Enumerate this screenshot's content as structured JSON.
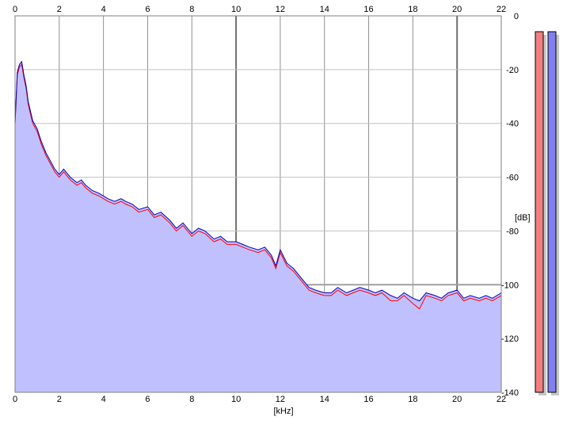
{
  "chart_data": {
    "type": "area",
    "x_unit_label": "[kHz]",
    "y_unit_label": "[dB]",
    "xlim": [
      0,
      22
    ],
    "ylim": [
      -140,
      0
    ],
    "x_ticks": [
      0,
      2,
      4,
      6,
      8,
      10,
      12,
      14,
      16,
      18,
      20,
      22
    ],
    "x_tick_labels": [
      "0",
      "2",
      "4",
      "6",
      "8",
      "10",
      "12",
      "14",
      "16",
      "18",
      "20",
      "22"
    ],
    "y_ticks": [
      0,
      -20,
      -40,
      -60,
      -80,
      -100,
      -120,
      -140
    ],
    "y_tick_labels": [
      "0",
      "-20",
      "-40",
      "-60",
      "-80",
      "-100",
      "-120",
      "-140"
    ],
    "grid": true,
    "series": [
      {
        "channel": "left",
        "color": "#ff0000",
        "x": [
          0,
          0.1,
          0.2,
          0.3,
          0.4,
          0.5,
          0.6,
          0.8,
          1,
          1.2,
          1.4,
          1.6,
          1.8,
          2,
          2.2,
          2.5,
          2.8,
          3,
          3.2,
          3.5,
          3.8,
          4,
          4.2,
          4.5,
          4.8,
          5,
          5.3,
          5.6,
          6,
          6.3,
          6.6,
          7,
          7.3,
          7.6,
          8,
          8.3,
          8.6,
          9,
          9.3,
          9.6,
          10,
          10.3,
          10.6,
          11,
          11.3,
          11.6,
          11.8,
          12,
          12.3,
          12.6,
          13,
          13.3,
          13.6,
          14,
          14.3,
          14.6,
          15,
          15.3,
          15.6,
          16,
          16.3,
          16.6,
          17,
          17.3,
          17.6,
          18,
          18.3,
          18.6,
          19,
          19.3,
          19.6,
          20,
          20.3,
          20.6,
          21,
          21.3,
          21.6,
          22
        ],
        "y": [
          -40,
          -22,
          -19,
          -18,
          -23,
          -27,
          -33,
          -40,
          -43,
          -48,
          -52,
          -55,
          -58,
          -60,
          -58,
          -61,
          -63,
          -62,
          -64,
          -66,
          -67,
          -68,
          -69,
          -70,
          -69,
          -70,
          -71,
          -73,
          -72,
          -75,
          -74,
          -77,
          -80,
          -78,
          -82,
          -80,
          -81,
          -84,
          -83,
          -85,
          -85,
          -86,
          -87,
          -88,
          -87,
          -90,
          -94,
          -88,
          -93,
          -95,
          -99,
          -102,
          -103,
          -104,
          -104,
          -102,
          -104,
          -103,
          -102,
          -103,
          -104,
          -103,
          -106,
          -106,
          -104,
          -107,
          -109,
          -104,
          -105,
          -106,
          -104,
          -103,
          -106,
          -105,
          -106,
          -105,
          -106,
          -104
        ]
      },
      {
        "channel": "right",
        "color": "#0000c0",
        "x": [
          0,
          0.1,
          0.2,
          0.3,
          0.4,
          0.5,
          0.6,
          0.8,
          1,
          1.2,
          1.4,
          1.6,
          1.8,
          2,
          2.2,
          2.5,
          2.8,
          3,
          3.2,
          3.5,
          3.8,
          4,
          4.2,
          4.5,
          4.8,
          5,
          5.3,
          5.6,
          6,
          6.3,
          6.6,
          7,
          7.3,
          7.6,
          8,
          8.3,
          8.6,
          9,
          9.3,
          9.6,
          10,
          10.3,
          10.6,
          11,
          11.3,
          11.6,
          11.8,
          12,
          12.3,
          12.6,
          13,
          13.3,
          13.6,
          14,
          14.3,
          14.6,
          15,
          15.3,
          15.6,
          16,
          16.3,
          16.6,
          17,
          17.3,
          17.6,
          18,
          18.3,
          18.6,
          19,
          19.3,
          19.6,
          20,
          20.3,
          20.6,
          21,
          21.3,
          21.6,
          22
        ],
        "y": [
          -40,
          -21,
          -18,
          -17,
          -22,
          -26,
          -32,
          -39,
          -42,
          -47,
          -51,
          -54,
          -57,
          -59,
          -57,
          -60,
          -62,
          -61,
          -63,
          -65,
          -66,
          -67,
          -68,
          -69,
          -68,
          -69,
          -70,
          -72,
          -71,
          -74,
          -73,
          -76,
          -79,
          -77,
          -81,
          -79,
          -80,
          -83,
          -82,
          -84,
          -84,
          -85,
          -86,
          -87,
          -86,
          -89,
          -93,
          -87,
          -92,
          -94,
          -98,
          -101,
          -102,
          -103,
          -103,
          -101,
          -103,
          -102,
          -101,
          -102,
          -103,
          -102,
          -104,
          -105,
          -103,
          -105,
          -106,
          -103,
          -104,
          -105,
          -103,
          -102,
          -105,
          -104,
          -105,
          -104,
          -105,
          -103
        ]
      }
    ],
    "level_meters": [
      {
        "channel": "left",
        "color": "#f08080"
      },
      {
        "channel": "right",
        "color": "#8080f0"
      }
    ],
    "fill_color": "#c0c0ff",
    "grid_color": "#c0c0c0"
  }
}
